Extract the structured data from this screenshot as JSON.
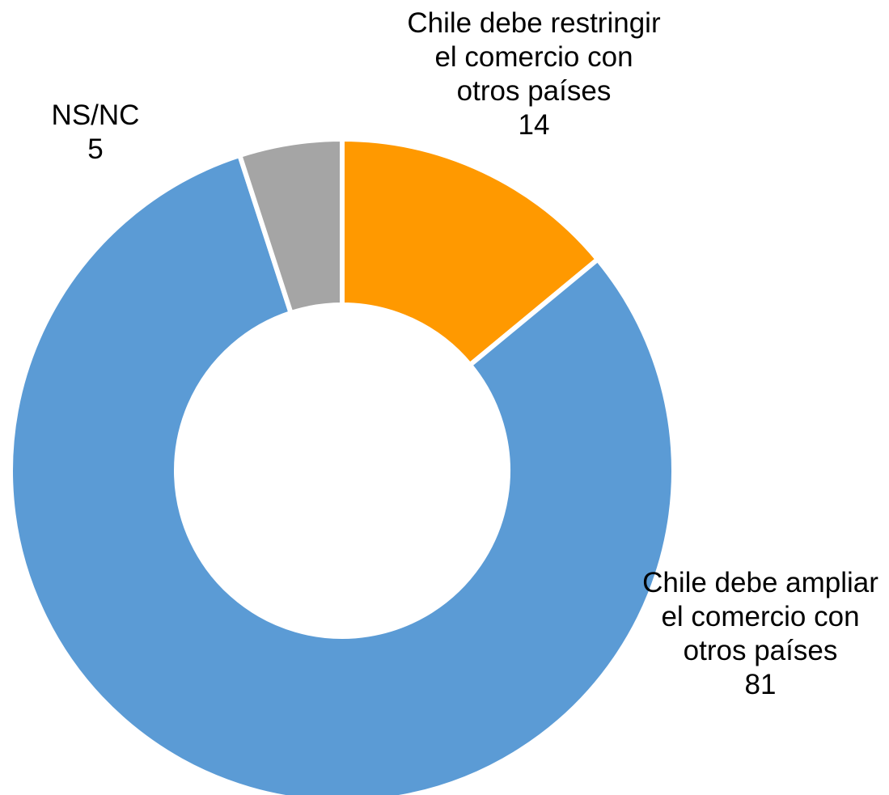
{
  "chart_data": {
    "type": "pie",
    "variant": "donut",
    "title": "",
    "slices": [
      {
        "label": [
          "Chile debe restringir",
          "el comercio con",
          "otros países"
        ],
        "value": 14,
        "value_label": "14",
        "color": "#FF9900"
      },
      {
        "label": [
          "Chile debe ampliar",
          "el comercio con",
          "otros países"
        ],
        "value": 81,
        "value_label": "81",
        "color": "#5B9BD5"
      },
      {
        "label": [
          "NS/NC"
        ],
        "value": 5,
        "value_label": "5",
        "color": "#A5A5A5"
      }
    ],
    "start_angle_deg": 0,
    "direction": "clockwise",
    "legend": "none",
    "data_labels": "outside"
  }
}
